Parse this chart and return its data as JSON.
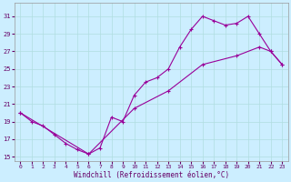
{
  "xlabel": "Windchill (Refroidissement éolien,°C)",
  "line_color": "#990099",
  "bg_color": "#cceeff",
  "grid_color": "#b0dde0",
  "xlim": [
    -0.5,
    23.5
  ],
  "ylim": [
    14.5,
    32.5
  ],
  "xticks": [
    0,
    1,
    2,
    3,
    4,
    5,
    6,
    7,
    8,
    9,
    10,
    11,
    12,
    13,
    14,
    15,
    16,
    17,
    18,
    19,
    20,
    21,
    22,
    23
  ],
  "yticks": [
    15,
    17,
    19,
    21,
    23,
    25,
    27,
    29,
    31
  ],
  "curve1_x": [
    0,
    1,
    2,
    3,
    4,
    5,
    6,
    7,
    8,
    9,
    10,
    11,
    12,
    13,
    14,
    15,
    16,
    17,
    18,
    19,
    20,
    21,
    22,
    23
  ],
  "curve1_y": [
    20.0,
    19.0,
    18.5,
    17.5,
    16.5,
    15.8,
    15.3,
    16.0,
    19.5,
    19.0,
    22.0,
    23.5,
    24.0,
    25.0,
    27.5,
    29.5,
    31.0,
    30.5,
    30.0,
    30.2,
    31.0,
    29.0,
    27.0,
    25.5
  ],
  "curve2_x": [
    0,
    6,
    10,
    13,
    16,
    19,
    21,
    22,
    23
  ],
  "curve2_y": [
    20.0,
    15.3,
    20.5,
    22.5,
    25.5,
    26.5,
    27.5,
    27.0,
    25.5
  ],
  "marker": "+",
  "markersize": 4,
  "linewidth": 0.8
}
